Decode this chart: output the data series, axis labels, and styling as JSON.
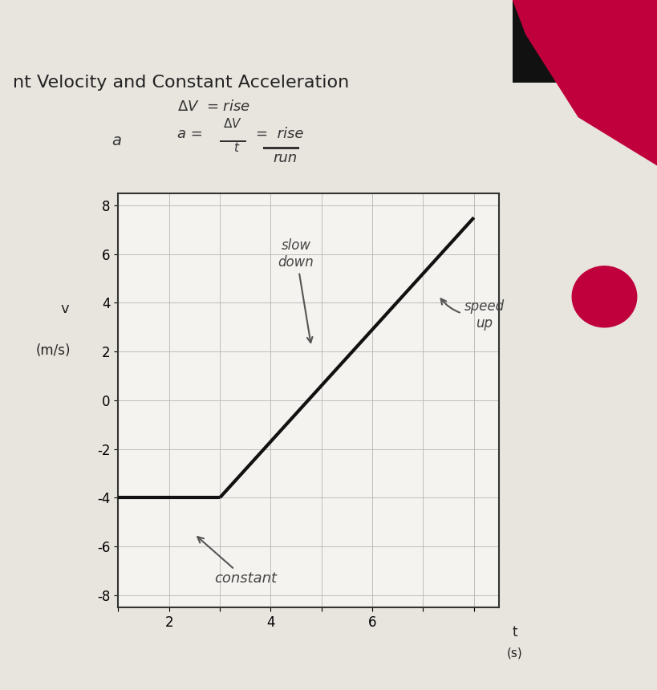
{
  "title": "nt Velocity and Constant Acceleration",
  "xlabel_t": "t",
  "xlabel_s": "(s)",
  "ylabel_v": "v",
  "ylabel_ms": "(m/s)",
  "xlim": [
    0,
    7.5
  ],
  "ylim": [
    -8.5,
    8.5
  ],
  "xtick_labels": [
    "",
    "2",
    "",
    "4",
    "",
    "6",
    "",
    ""
  ],
  "xtick_vals": [
    0,
    1,
    2,
    3,
    4,
    5,
    6,
    7
  ],
  "ytick_vals": [
    -8,
    -6,
    -4,
    -2,
    0,
    2,
    4,
    6,
    8
  ],
  "bg_color": "#e8e4de",
  "plot_bg": "#f5f3f0",
  "line1_x": [
    0,
    2
  ],
  "line1_y": [
    -4,
    -4
  ],
  "line2_x": [
    2,
    7
  ],
  "line2_y": [
    -4,
    7.5
  ],
  "line_color": "#111111",
  "line_width": 3.0,
  "grid_color": "#b0b0b0",
  "red_color": "#c0003c",
  "dark_color": "#222222"
}
